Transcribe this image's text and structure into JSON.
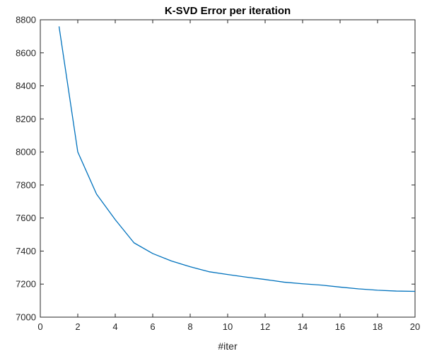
{
  "chart_data": {
    "type": "line",
    "title": "K-SVD Error per iteration",
    "xlabel": "#iter",
    "ylabel": "",
    "xlim": [
      0,
      20
    ],
    "ylim": [
      7000,
      8800
    ],
    "xticks": [
      0,
      2,
      4,
      6,
      8,
      10,
      12,
      14,
      16,
      18,
      20
    ],
    "yticks": [
      7000,
      7200,
      7400,
      7600,
      7800,
      8000,
      8200,
      8400,
      8600,
      8800
    ],
    "grid": false,
    "series": [
      {
        "color": "#0072bd",
        "x": [
          1,
          2,
          3,
          4,
          5,
          6,
          7,
          8,
          9,
          10,
          11,
          12,
          13,
          14,
          15,
          16,
          17,
          18,
          19,
          20
        ],
        "y": [
          8760,
          8000,
          7745,
          7590,
          7450,
          7385,
          7340,
          7305,
          7275,
          7258,
          7242,
          7228,
          7212,
          7202,
          7194,
          7182,
          7171,
          7163,
          7158,
          7156
        ]
      }
    ]
  }
}
